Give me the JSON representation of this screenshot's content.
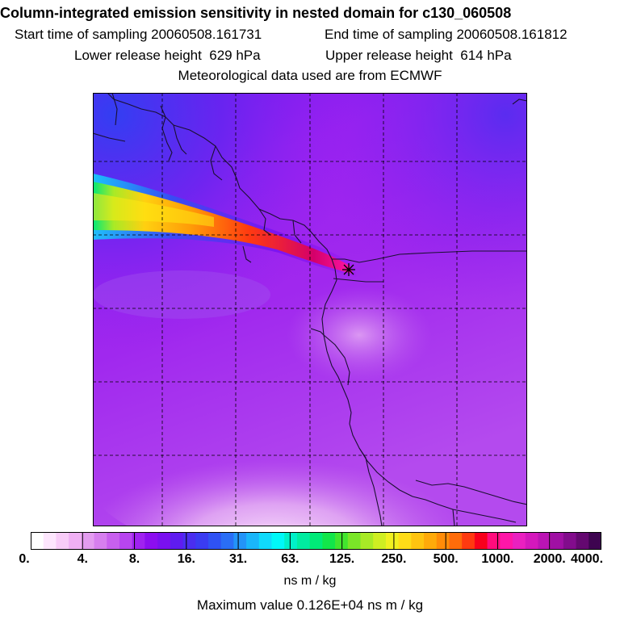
{
  "header": {
    "title": "Column-integrated emission sensitivity in nested domain for c130_060508",
    "start_sampling": "Start time of sampling 20060508.161731",
    "end_sampling": "End time of sampling 20060508.161812",
    "lower_release": "Lower release height  629 hPa",
    "upper_release": "Upper release height  614 hPa",
    "met_source": "Meteorological data used are from ECMWF"
  },
  "colorbar": {
    "tick_labels": [
      "0.",
      "4.",
      "8.",
      "16.",
      "31.",
      "63.",
      "125.",
      "250.",
      "500.",
      "1000.",
      "2000.",
      "4000."
    ],
    "colors": [
      "#ffffff",
      "#fde6fd",
      "#f8ccf8",
      "#f0b0f4",
      "#e39cf0",
      "#d67fee",
      "#c860ee",
      "#b845ef",
      "#a022f0",
      "#8c0ef0",
      "#7a10f0",
      "#5f1cf0",
      "#4a2ef0",
      "#3a3cf2",
      "#2f52f4",
      "#2a6ef6",
      "#2394f8",
      "#1ab6fa",
      "#10dafc",
      "#00f8f8",
      "#00f0c8",
      "#00eca0",
      "#00ea78",
      "#12e64a",
      "#42e62e",
      "#7ae628",
      "#a8ea26",
      "#cfee22",
      "#f0f020",
      "#ffdc18",
      "#ffc410",
      "#ffaa0a",
      "#ff8c08",
      "#ff6c0a",
      "#ff3a10",
      "#f8001c",
      "#ff0c7c",
      "#ff16a8",
      "#ea20c0",
      "#d418bc",
      "#bb14b4",
      "#a010a4",
      "#820c8c",
      "#640870",
      "#3e0450"
    ]
  },
  "units_label": "ns m / kg",
  "max_value_label": "Maximum value  0.126E+04 ns m / kg",
  "map": {
    "type": "emission-sensitivity-map",
    "release_marker": "release-point-cross"
  }
}
